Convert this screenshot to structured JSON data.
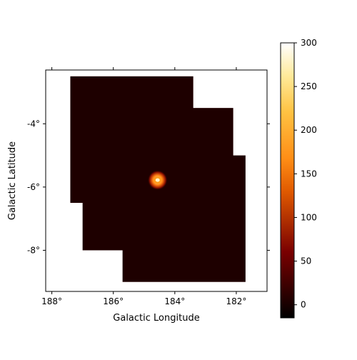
{
  "chart_data": {
    "type": "heatmap",
    "title": "",
    "xlabel": "Galactic Longitude",
    "ylabel": "Galactic Latitude",
    "xlim": [
      188.2,
      181.0
    ],
    "ylim": [
      -9.3,
      -2.3
    ],
    "x_ticks": [
      {
        "value": 188,
        "label": "188°"
      },
      {
        "value": 186,
        "label": "186°"
      },
      {
        "value": 184,
        "label": "184°"
      },
      {
        "value": 182,
        "label": "182°"
      }
    ],
    "y_ticks": [
      {
        "value": -4,
        "label": "-4°"
      },
      {
        "value": -6,
        "label": "-6°"
      },
      {
        "value": -8,
        "label": "-8°"
      }
    ],
    "source": {
      "lon": 184.56,
      "lat": -5.78,
      "peak_value": 300
    },
    "background_level": 5,
    "coverage": [
      {
        "lon_min": 183.4,
        "lon_max": 187.4,
        "lat_min": -6.5,
        "lat_max": -2.5
      },
      {
        "lon_min": 182.1,
        "lon_max": 187.0,
        "lat_min": -8.0,
        "lat_max": -3.5
      },
      {
        "lon_min": 181.7,
        "lon_max": 185.7,
        "lat_min": -9.0,
        "lat_max": -5.0
      }
    ],
    "colorbar": {
      "colormap": "afmhot",
      "min": -15,
      "max": 300,
      "ticks": [
        {
          "value": 0,
          "label": "0"
        },
        {
          "value": 50,
          "label": "50"
        },
        {
          "value": 100,
          "label": "100"
        },
        {
          "value": 150,
          "label": "150"
        },
        {
          "value": 200,
          "label": "200"
        },
        {
          "value": 250,
          "label": "250"
        },
        {
          "value": 300,
          "label": "300"
        }
      ]
    }
  }
}
